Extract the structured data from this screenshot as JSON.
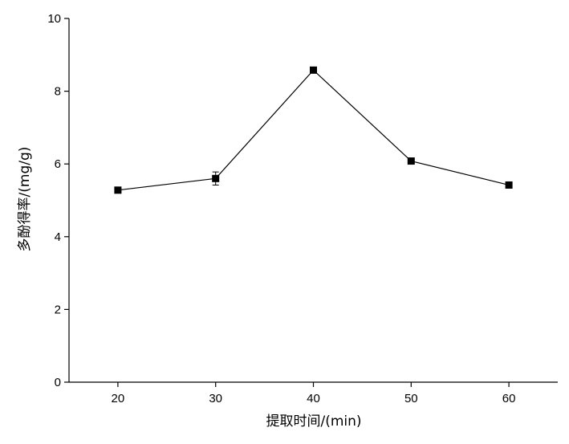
{
  "chart_data": {
    "type": "line",
    "title": "",
    "xlabel": "提取时间/(min)",
    "ylabel": "多酚得率/(mg/g)",
    "x_ticks": [
      "20",
      "30",
      "40",
      "50",
      "60"
    ],
    "y_ticks": [
      "0",
      "2",
      "4",
      "6",
      "8",
      "10"
    ],
    "xlim": [
      15,
      65
    ],
    "ylim": [
      0,
      10
    ],
    "grid": false,
    "series": [
      {
        "x": [
          20,
          30,
          40,
          50,
          60
        ],
        "y": [
          5.28,
          5.6,
          8.58,
          6.08,
          5.42
        ],
        "error": [
          0.05,
          0.18,
          0.06,
          0.06,
          0.05
        ]
      }
    ],
    "line_color": "#000000",
    "marker": "square"
  }
}
